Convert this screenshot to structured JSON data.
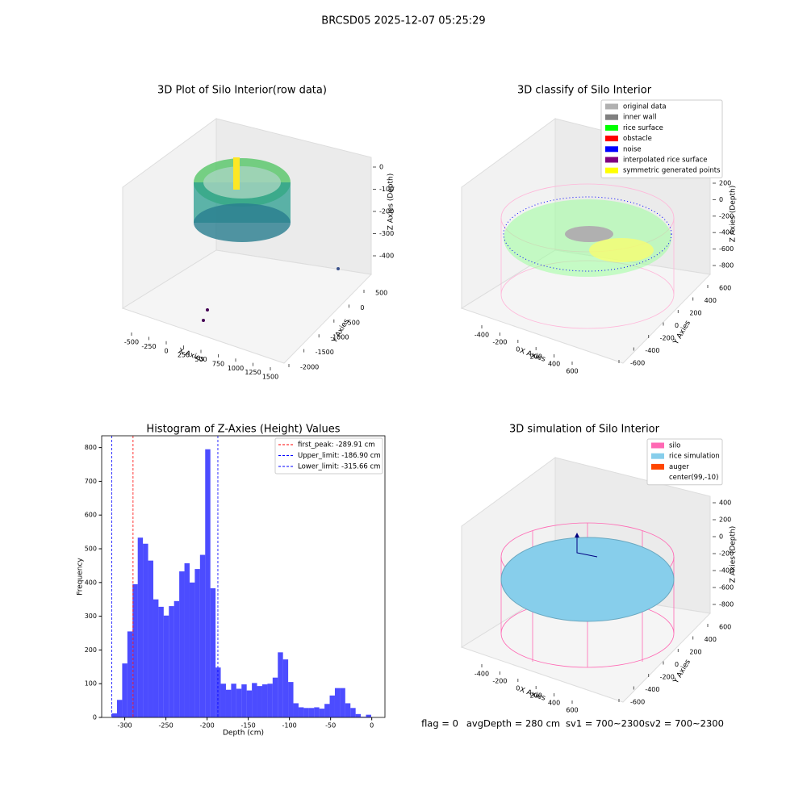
{
  "title": "BRCSD05 2025-12-07 05:25:29",
  "chart_data": [
    {
      "type": "scatter3d",
      "title": "3D Plot of Silo Interior(row data)",
      "xlabel": "X Axies",
      "ylabel": "Y Axies",
      "zlabel": "Z Axies (Depth)",
      "xticks": [
        -500,
        -250,
        0,
        250,
        500,
        750,
        1000,
        1250,
        1500
      ],
      "yticks": [
        -2000,
        -1500,
        -1000,
        -500,
        0,
        500
      ],
      "zticks": [
        -400,
        -300,
        -200,
        -100,
        0
      ]
    },
    {
      "type": "scatter3d",
      "title": "3D classify of Silo Interior",
      "xlabel": "X Axies",
      "ylabel": "Y Axies",
      "zlabel": "Z Axies (Depth)",
      "xticks": [
        -400,
        -200,
        0,
        200,
        400,
        600
      ],
      "yticks": [
        -600,
        -400,
        -200,
        0,
        200,
        400,
        600
      ],
      "zticks": [
        -800,
        -600,
        -400,
        -200,
        0,
        200
      ],
      "series": [
        {
          "name": "original data",
          "color": "#b0b0b0"
        },
        {
          "name": "inner wall",
          "color": "#808080"
        },
        {
          "name": "rice surface",
          "color": "#00ff00"
        },
        {
          "name": "obstacle",
          "color": "#ff0000"
        },
        {
          "name": "noise",
          "color": "#0000ff"
        },
        {
          "name": "interpolated rice surface",
          "color": "#800080"
        },
        {
          "name": "symmetric generated points",
          "color": "#ffff00"
        }
      ]
    },
    {
      "type": "histogram",
      "title": "Histogram of Z-Axies (Height) Values",
      "xlabel": "Depth (cm)",
      "ylabel": "Frequency",
      "color": "#0000ff",
      "bins": [
        -315.7,
        -309.4,
        -303.1,
        -296.8,
        -290.5,
        -284.2,
        -277.9,
        -271.6,
        -265.3,
        -259.0,
        -252.7,
        -246.4,
        -240.1,
        -233.8,
        -227.5,
        -221.2,
        -214.9,
        -208.6,
        -202.3,
        -196.0,
        -189.7,
        -183.4,
        -177.1,
        -170.8,
        -164.5,
        -158.2,
        -151.9,
        -145.6,
        -139.3,
        -133.0,
        -126.7,
        -120.4,
        -114.1,
        -107.8,
        -101.5,
        -95.2,
        -88.9,
        -82.6,
        -76.3,
        -70.0,
        -63.7,
        -57.4,
        -51.1,
        -44.8,
        -38.5,
        -32.2,
        -25.9,
        -19.6,
        -13.3,
        -7.0,
        -0.7
      ],
      "values": [
        12,
        52,
        160,
        255,
        395,
        533,
        515,
        465,
        350,
        328,
        302,
        330,
        345,
        433,
        457,
        400,
        440,
        482,
        795,
        383,
        148,
        100,
        82,
        100,
        85,
        98,
        80,
        102,
        93,
        98,
        100,
        118,
        193,
        172,
        105,
        42,
        30,
        28,
        28,
        30,
        26,
        40,
        65,
        87,
        87,
        42,
        28,
        10,
        2,
        8
      ],
      "xlim": [
        -328,
        16
      ],
      "ylim": [
        0,
        835
      ],
      "xticks": [
        -300,
        -250,
        -200,
        -150,
        -100,
        -50,
        0
      ],
      "yticks": [
        0,
        100,
        200,
        300,
        400,
        500,
        600,
        700,
        800
      ],
      "lines": [
        {
          "name": "first_peak: -289.91 cm",
          "value": -289.91,
          "color": "#ff0000"
        },
        {
          "name": "Upper_limit: -186.90 cm",
          "value": -186.9,
          "color": "#0000ff"
        },
        {
          "name": "Lower_limit: -315.66 cm",
          "value": -315.66,
          "color": "#0000ff"
        }
      ],
      "legend": "upper right"
    },
    {
      "type": "scatter3d",
      "title": "3D simulation of Silo Interior",
      "xlabel": "X Axies",
      "ylabel": "Y Axies",
      "zlabel": "Z Axies (Depth)",
      "xticks": [
        -400,
        -200,
        0,
        200,
        400,
        600
      ],
      "yticks": [
        -600,
        -400,
        -200,
        0,
        200,
        400,
        600
      ],
      "zticks": [
        -800,
        -600,
        -400,
        -200,
        0,
        200,
        400
      ],
      "series": [
        {
          "name": "silo",
          "color": "#ff69b4"
        },
        {
          "name": "rice simulation",
          "color": "#87ceeb"
        },
        {
          "name": "auger",
          "color": "#ff4500"
        },
        {
          "name": "center(99,-10)",
          "color": "#ffffff"
        }
      ]
    }
  ],
  "footer": [
    "flag = 0",
    "avgDepth = 280 cm",
    "sv1 = 700~2300",
    "sv2 = 700~2300"
  ]
}
